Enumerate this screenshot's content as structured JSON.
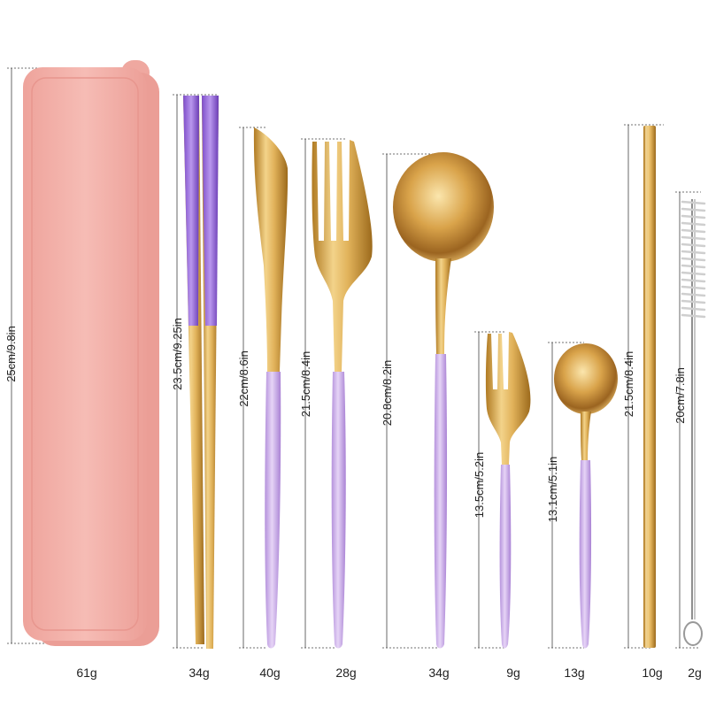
{
  "colors": {
    "case_pink": "#f2aaa3",
    "gold": "#d9a948",
    "lavender": "#c9a8e6",
    "purple": "#9366d6"
  },
  "items": [
    {
      "name": "case",
      "dimension": "25cm/9.8in",
      "weight": "61g"
    },
    {
      "name": "chopsticks",
      "dimension": "23.5cm/9.25in",
      "weight": "34g"
    },
    {
      "name": "knife",
      "dimension": "22cm/8.6in",
      "weight": "40g"
    },
    {
      "name": "fork",
      "dimension": "21.5cm/8.4in",
      "weight": "28g"
    },
    {
      "name": "spoon",
      "dimension": "20.8cm/8.2in",
      "weight": "34g"
    },
    {
      "name": "small-fork",
      "dimension": "13.5cm/5.2in",
      "weight": "9g"
    },
    {
      "name": "small-spoon",
      "dimension": "13.1cm/5.1in",
      "weight": "13g"
    },
    {
      "name": "straw",
      "dimension": "21.5cm/8.4in",
      "weight": "10g"
    },
    {
      "name": "brush",
      "dimension": "20cm/7.8in",
      "weight": "2g"
    }
  ]
}
